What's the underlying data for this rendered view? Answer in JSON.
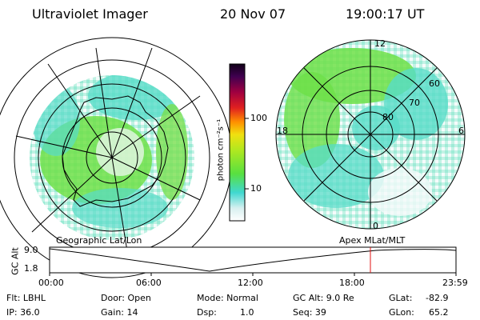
{
  "header": {
    "instrument": "Ultraviolet Imager",
    "date": "20 Nov 07",
    "time": "19:00:17  UT"
  },
  "colorbar": {
    "label": "photon cm⁻²s⁻¹",
    "ticks": [
      "100",
      "10"
    ]
  },
  "apex_plot": {
    "mlat_labels": [
      "60",
      "70",
      "80"
    ],
    "mlt_labels": [
      "12",
      "18",
      "6",
      "0"
    ]
  },
  "timeline": {
    "left_caption": "Geographic Lat/Lon",
    "right_caption": "Apex  MLat/MLT",
    "y_label": "GC Alt",
    "y_ticks": [
      "9.0",
      "1.8"
    ],
    "x_ticks": [
      "00:00",
      "06:00",
      "12:00",
      "18:00",
      "23:59"
    ],
    "marker_time": "19:00"
  },
  "status": {
    "flt": "Flt: LBHL",
    "ip": "IP: 36.0",
    "door": "Door: Open",
    "gain": "Gain: 14",
    "mode": "Mode: Normal",
    "dsp_label": "Dsp:",
    "dsp_value": "1.0",
    "gc_alt": "GC Alt: 9.0 Re",
    "seq": "Seq: 39",
    "glat_label": "GLat:",
    "glat_value": "-82.9",
    "glon_label": "GLon:",
    "glon_value": "65.2"
  },
  "colors": {
    "marker": "#e01010",
    "green": "#66e040",
    "cyan": "#30d8c8",
    "white_noise": "#e8f4f4"
  }
}
